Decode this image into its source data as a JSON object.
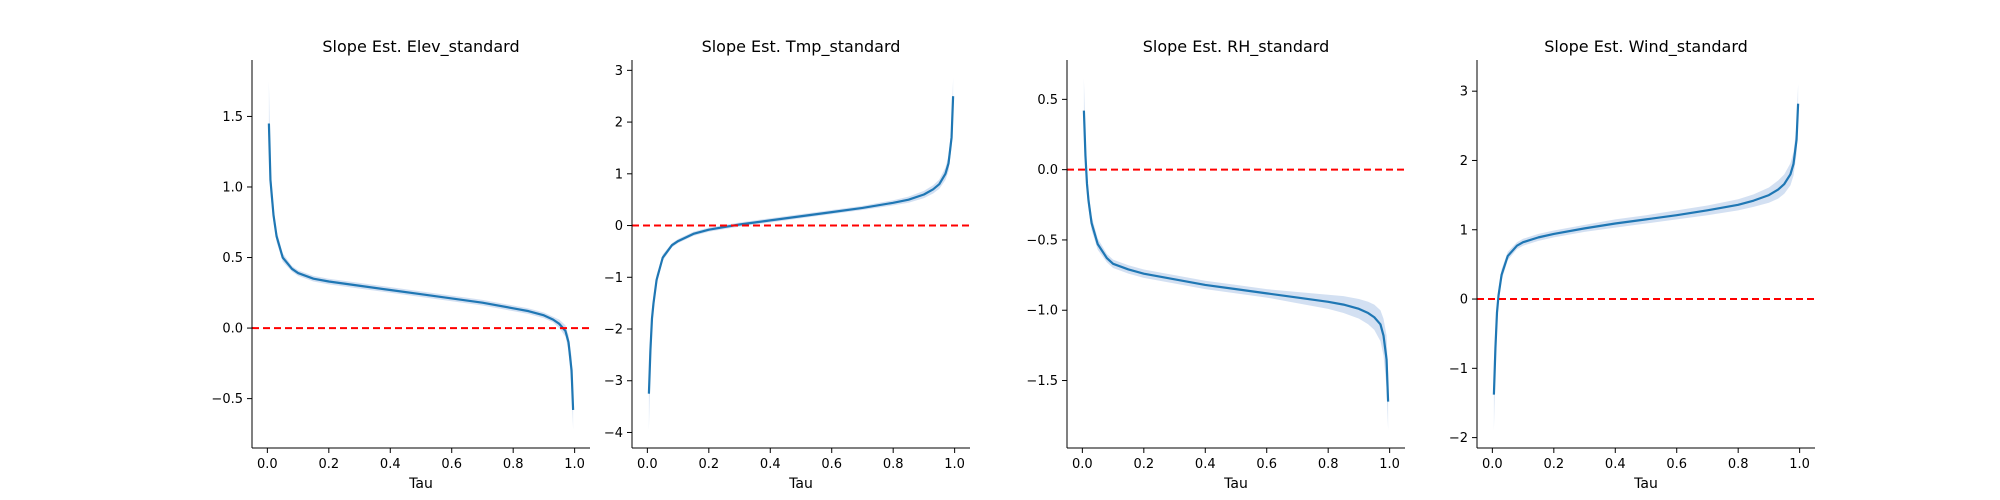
{
  "chart_data": [
    {
      "type": "line",
      "title": "Slope Est. Elev_standard",
      "xlabel": "Tau",
      "ylabel": "",
      "xlim": [
        -0.05,
        1.05
      ],
      "ylim": [
        -0.85,
        1.9
      ],
      "xticks": [
        0.0,
        0.2,
        0.4,
        0.6,
        0.8,
        1.0
      ],
      "xtick_labels": [
        "0.0",
        "0.2",
        "0.4",
        "0.6",
        "0.8",
        "1.0"
      ],
      "yticks": [
        -0.5,
        0.0,
        0.5,
        1.0,
        1.5
      ],
      "ytick_labels": [
        "−0.5",
        "0.0",
        "0.5",
        "1.0",
        "1.5"
      ],
      "reference_line": {
        "y": 0,
        "color": "#ff0000",
        "style": "dashed"
      },
      "line_color": "#1f77b4",
      "band_color": "#aec7e8",
      "series": [
        {
          "x": [
            0.005,
            0.01,
            0.02,
            0.03,
            0.05,
            0.08,
            0.1,
            0.15,
            0.2,
            0.3,
            0.4,
            0.5,
            0.6,
            0.7,
            0.8,
            0.85,
            0.9,
            0.93,
            0.95,
            0.97,
            0.98,
            0.99,
            0.995
          ],
          "y": [
            1.45,
            1.05,
            0.8,
            0.65,
            0.5,
            0.42,
            0.39,
            0.35,
            0.33,
            0.3,
            0.27,
            0.24,
            0.21,
            0.18,
            0.14,
            0.12,
            0.09,
            0.06,
            0.03,
            -0.02,
            -0.1,
            -0.3,
            -0.58
          ],
          "lower": [
            1.25,
            0.95,
            0.75,
            0.61,
            0.47,
            0.4,
            0.37,
            0.33,
            0.31,
            0.28,
            0.25,
            0.22,
            0.19,
            0.16,
            0.12,
            0.1,
            0.07,
            0.04,
            0.0,
            -0.06,
            -0.16,
            -0.42,
            -0.72
          ],
          "upper": [
            1.75,
            1.15,
            0.85,
            0.69,
            0.53,
            0.44,
            0.41,
            0.37,
            0.35,
            0.32,
            0.29,
            0.26,
            0.23,
            0.2,
            0.16,
            0.14,
            0.11,
            0.08,
            0.06,
            0.02,
            -0.05,
            -0.2,
            -0.45
          ]
        }
      ]
    },
    {
      "type": "line",
      "title": "Slope Est. Tmp_standard",
      "xlabel": "Tau",
      "ylabel": "",
      "xlim": [
        -0.05,
        1.05
      ],
      "ylim": [
        -4.3,
        3.2
      ],
      "xticks": [
        0.0,
        0.2,
        0.4,
        0.6,
        0.8,
        1.0
      ],
      "xtick_labels": [
        "0.0",
        "0.2",
        "0.4",
        "0.6",
        "0.8",
        "1.0"
      ],
      "yticks": [
        -4,
        -3,
        -2,
        -1,
        0,
        1,
        2,
        3
      ],
      "ytick_labels": [
        "−4",
        "−3",
        "−2",
        "−1",
        "0",
        "1",
        "2",
        "3"
      ],
      "reference_line": {
        "y": 0,
        "color": "#ff0000",
        "style": "dashed"
      },
      "line_color": "#1f77b4",
      "band_color": "#aec7e8",
      "series": [
        {
          "x": [
            0.005,
            0.01,
            0.015,
            0.02,
            0.03,
            0.05,
            0.08,
            0.1,
            0.15,
            0.2,
            0.25,
            0.3,
            0.4,
            0.5,
            0.6,
            0.7,
            0.8,
            0.85,
            0.9,
            0.93,
            0.95,
            0.97,
            0.98,
            0.99,
            0.995
          ],
          "y": [
            -3.25,
            -2.4,
            -1.8,
            -1.5,
            -1.05,
            -0.62,
            -0.38,
            -0.3,
            -0.16,
            -0.08,
            -0.03,
            0.02,
            0.1,
            0.18,
            0.26,
            0.34,
            0.44,
            0.5,
            0.6,
            0.7,
            0.8,
            1.0,
            1.2,
            1.7,
            2.5
          ],
          "lower": [
            -3.95,
            -2.7,
            -2.0,
            -1.65,
            -1.15,
            -0.68,
            -0.42,
            -0.34,
            -0.2,
            -0.12,
            -0.07,
            -0.02,
            0.06,
            0.14,
            0.22,
            0.3,
            0.39,
            0.44,
            0.53,
            0.62,
            0.71,
            0.88,
            1.05,
            1.5,
            2.2
          ],
          "upper": [
            -2.6,
            -2.1,
            -1.6,
            -1.35,
            -0.95,
            -0.56,
            -0.34,
            -0.26,
            -0.12,
            -0.04,
            0.01,
            0.06,
            0.14,
            0.22,
            0.3,
            0.38,
            0.49,
            0.56,
            0.67,
            0.78,
            0.89,
            1.12,
            1.35,
            1.9,
            2.85
          ]
        }
      ]
    },
    {
      "type": "line",
      "title": "Slope Est. RH_standard",
      "xlabel": "Tau",
      "ylabel": "",
      "xlim": [
        -0.05,
        1.05
      ],
      "ylim": [
        -1.98,
        0.78
      ],
      "xticks": [
        0.0,
        0.2,
        0.4,
        0.6,
        0.8,
        1.0
      ],
      "xtick_labels": [
        "0.0",
        "0.2",
        "0.4",
        "0.6",
        "0.8",
        "1.0"
      ],
      "yticks": [
        -1.5,
        -1.0,
        -0.5,
        0.0,
        0.5
      ],
      "ytick_labels": [
        "−1.5",
        "−1.0",
        "−0.5",
        "0.0",
        "0.5"
      ],
      "reference_line": {
        "y": 0,
        "color": "#ff0000",
        "style": "dashed"
      },
      "line_color": "#1f77b4",
      "band_color": "#aec7e8",
      "series": [
        {
          "x": [
            0.005,
            0.01,
            0.015,
            0.02,
            0.03,
            0.05,
            0.08,
            0.1,
            0.15,
            0.2,
            0.3,
            0.4,
            0.5,
            0.6,
            0.7,
            0.8,
            0.85,
            0.9,
            0.93,
            0.95,
            0.97,
            0.98,
            0.99,
            0.995
          ],
          "y": [
            0.42,
            0.1,
            -0.1,
            -0.22,
            -0.38,
            -0.53,
            -0.63,
            -0.67,
            -0.71,
            -0.74,
            -0.78,
            -0.82,
            -0.85,
            -0.88,
            -0.91,
            -0.94,
            -0.96,
            -0.99,
            -1.02,
            -1.05,
            -1.1,
            -1.18,
            -1.35,
            -1.65
          ],
          "lower": [
            0.25,
            0.0,
            -0.18,
            -0.28,
            -0.43,
            -0.57,
            -0.66,
            -0.7,
            -0.74,
            -0.77,
            -0.81,
            -0.85,
            -0.88,
            -0.91,
            -0.95,
            -0.99,
            -1.02,
            -1.06,
            -1.1,
            -1.14,
            -1.22,
            -1.32,
            -1.55,
            -1.85
          ],
          "upper": [
            0.65,
            0.22,
            -0.02,
            -0.15,
            -0.33,
            -0.49,
            -0.6,
            -0.64,
            -0.68,
            -0.71,
            -0.75,
            -0.79,
            -0.82,
            -0.85,
            -0.87,
            -0.89,
            -0.9,
            -0.92,
            -0.94,
            -0.96,
            -1.0,
            -1.06,
            -1.18,
            -1.45
          ]
        }
      ]
    },
    {
      "type": "line",
      "title": "Slope Est. Wind_standard",
      "xlabel": "Tau",
      "ylabel": "",
      "xlim": [
        -0.05,
        1.05
      ],
      "ylim": [
        -2.15,
        3.45
      ],
      "xticks": [
        0.0,
        0.2,
        0.4,
        0.6,
        0.8,
        1.0
      ],
      "xtick_labels": [
        "0.0",
        "0.2",
        "0.4",
        "0.6",
        "0.8",
        "1.0"
      ],
      "yticks": [
        -2,
        -1,
        0,
        1,
        2,
        3
      ],
      "ytick_labels": [
        "−2",
        "−1",
        "0",
        "1",
        "2",
        "3"
      ],
      "reference_line": {
        "y": 0,
        "color": "#ff0000",
        "style": "dashed"
      },
      "line_color": "#1f77b4",
      "band_color": "#aec7e8",
      "series": [
        {
          "x": [
            0.005,
            0.01,
            0.015,
            0.02,
            0.03,
            0.05,
            0.08,
            0.1,
            0.15,
            0.2,
            0.3,
            0.4,
            0.5,
            0.6,
            0.7,
            0.8,
            0.85,
            0.9,
            0.93,
            0.95,
            0.97,
            0.98,
            0.99,
            0.995
          ],
          "y": [
            -1.38,
            -0.7,
            -0.2,
            0.05,
            0.35,
            0.62,
            0.77,
            0.82,
            0.89,
            0.94,
            1.02,
            1.09,
            1.15,
            1.21,
            1.28,
            1.36,
            1.42,
            1.5,
            1.58,
            1.66,
            1.8,
            1.95,
            2.3,
            2.82
          ],
          "lower": [
            -1.9,
            -0.95,
            -0.35,
            -0.05,
            0.27,
            0.56,
            0.72,
            0.77,
            0.84,
            0.89,
            0.97,
            1.03,
            1.09,
            1.15,
            1.21,
            1.28,
            1.33,
            1.39,
            1.45,
            1.52,
            1.64,
            1.78,
            2.1,
            2.55
          ],
          "upper": [
            -0.9,
            -0.45,
            -0.05,
            0.15,
            0.43,
            0.68,
            0.82,
            0.87,
            0.94,
            0.99,
            1.07,
            1.15,
            1.21,
            1.28,
            1.35,
            1.44,
            1.51,
            1.61,
            1.71,
            1.8,
            1.96,
            2.12,
            2.5,
            3.1
          ]
        }
      ]
    }
  ]
}
